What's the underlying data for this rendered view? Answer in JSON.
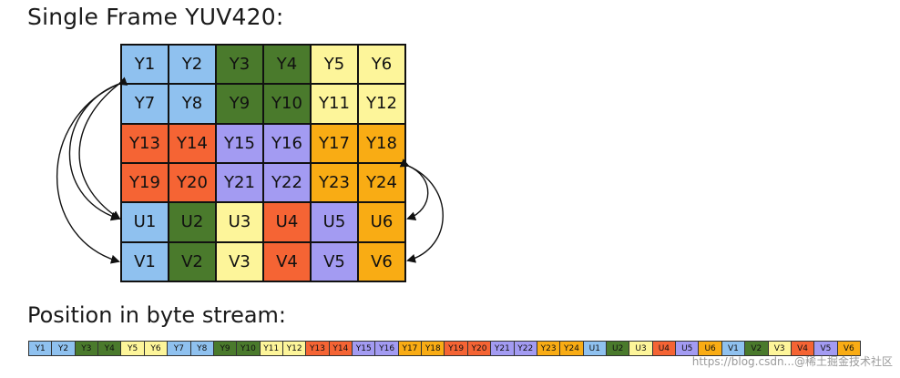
{
  "title": "Single Frame YUV420:",
  "subtitle": "Position in byte stream:",
  "watermark": "https://blog.csdn...@稀土掘金技术社区",
  "colors": {
    "light_blue": "#8fc1ef",
    "dark_green": "#4a7a2c",
    "light_yellow": "#fdf59a",
    "red_orange": "#f56434",
    "purple": "#a39bf2",
    "orange": "#f9ac14"
  },
  "grid": {
    "rows": [
      [
        {
          "label": "Y1",
          "color": "light_blue"
        },
        {
          "label": "Y2",
          "color": "light_blue"
        },
        {
          "label": "Y3",
          "color": "dark_green"
        },
        {
          "label": "Y4",
          "color": "dark_green"
        },
        {
          "label": "Y5",
          "color": "light_yellow"
        },
        {
          "label": "Y6",
          "color": "light_yellow"
        }
      ],
      [
        {
          "label": "Y7",
          "color": "light_blue"
        },
        {
          "label": "Y8",
          "color": "light_blue"
        },
        {
          "label": "Y9",
          "color": "dark_green"
        },
        {
          "label": "Y10",
          "color": "dark_green"
        },
        {
          "label": "Y11",
          "color": "light_yellow"
        },
        {
          "label": "Y12",
          "color": "light_yellow"
        }
      ],
      [
        {
          "label": "Y13",
          "color": "red_orange"
        },
        {
          "label": "Y14",
          "color": "red_orange"
        },
        {
          "label": "Y15",
          "color": "purple"
        },
        {
          "label": "Y16",
          "color": "purple"
        },
        {
          "label": "Y17",
          "color": "orange"
        },
        {
          "label": "Y18",
          "color": "orange"
        }
      ],
      [
        {
          "label": "Y19",
          "color": "red_orange"
        },
        {
          "label": "Y20",
          "color": "red_orange"
        },
        {
          "label": "Y21",
          "color": "purple"
        },
        {
          "label": "Y22",
          "color": "purple"
        },
        {
          "label": "Y23",
          "color": "orange"
        },
        {
          "label": "Y24",
          "color": "orange"
        }
      ],
      [
        {
          "label": "U1",
          "color": "light_blue"
        },
        {
          "label": "U2",
          "color": "dark_green"
        },
        {
          "label": "U3",
          "color": "light_yellow"
        },
        {
          "label": "U4",
          "color": "red_orange"
        },
        {
          "label": "U5",
          "color": "purple"
        },
        {
          "label": "U6",
          "color": "orange"
        }
      ],
      [
        {
          "label": "V1",
          "color": "light_blue"
        },
        {
          "label": "V2",
          "color": "dark_green"
        },
        {
          "label": "V3",
          "color": "light_yellow"
        },
        {
          "label": "V4",
          "color": "red_orange"
        },
        {
          "label": "V5",
          "color": "purple"
        },
        {
          "label": "V6",
          "color": "orange"
        }
      ]
    ]
  },
  "stream": [
    {
      "label": "Y1",
      "color": "light_blue"
    },
    {
      "label": "Y2",
      "color": "light_blue"
    },
    {
      "label": "Y3",
      "color": "dark_green"
    },
    {
      "label": "Y4",
      "color": "dark_green"
    },
    {
      "label": "Y5",
      "color": "light_yellow"
    },
    {
      "label": "Y6",
      "color": "light_yellow"
    },
    {
      "label": "Y7",
      "color": "light_blue"
    },
    {
      "label": "Y8",
      "color": "light_blue"
    },
    {
      "label": "Y9",
      "color": "dark_green"
    },
    {
      "label": "Y10",
      "color": "dark_green"
    },
    {
      "label": "Y11",
      "color": "light_yellow"
    },
    {
      "label": "Y12",
      "color": "light_yellow"
    },
    {
      "label": "Y13",
      "color": "red_orange"
    },
    {
      "label": "Y14",
      "color": "red_orange"
    },
    {
      "label": "Y15",
      "color": "purple"
    },
    {
      "label": "Y16",
      "color": "purple"
    },
    {
      "label": "Y17",
      "color": "orange"
    },
    {
      "label": "Y18",
      "color": "orange"
    },
    {
      "label": "Y19",
      "color": "red_orange"
    },
    {
      "label": "Y20",
      "color": "red_orange"
    },
    {
      "label": "Y21",
      "color": "purple"
    },
    {
      "label": "Y22",
      "color": "purple"
    },
    {
      "label": "Y23",
      "color": "orange"
    },
    {
      "label": "Y24",
      "color": "orange"
    },
    {
      "label": "U1",
      "color": "light_blue"
    },
    {
      "label": "U2",
      "color": "dark_green"
    },
    {
      "label": "U3",
      "color": "light_yellow"
    },
    {
      "label": "U4",
      "color": "red_orange"
    },
    {
      "label": "U5",
      "color": "purple"
    },
    {
      "label": "U6",
      "color": "orange"
    },
    {
      "label": "V1",
      "color": "light_blue"
    },
    {
      "label": "V2",
      "color": "dark_green"
    },
    {
      "label": "V3",
      "color": "light_yellow"
    },
    {
      "label": "V4",
      "color": "red_orange"
    },
    {
      "label": "V5",
      "color": "purple"
    },
    {
      "label": "V6",
      "color": "orange"
    }
  ],
  "arrows_icon": "curved-arrow-icon"
}
